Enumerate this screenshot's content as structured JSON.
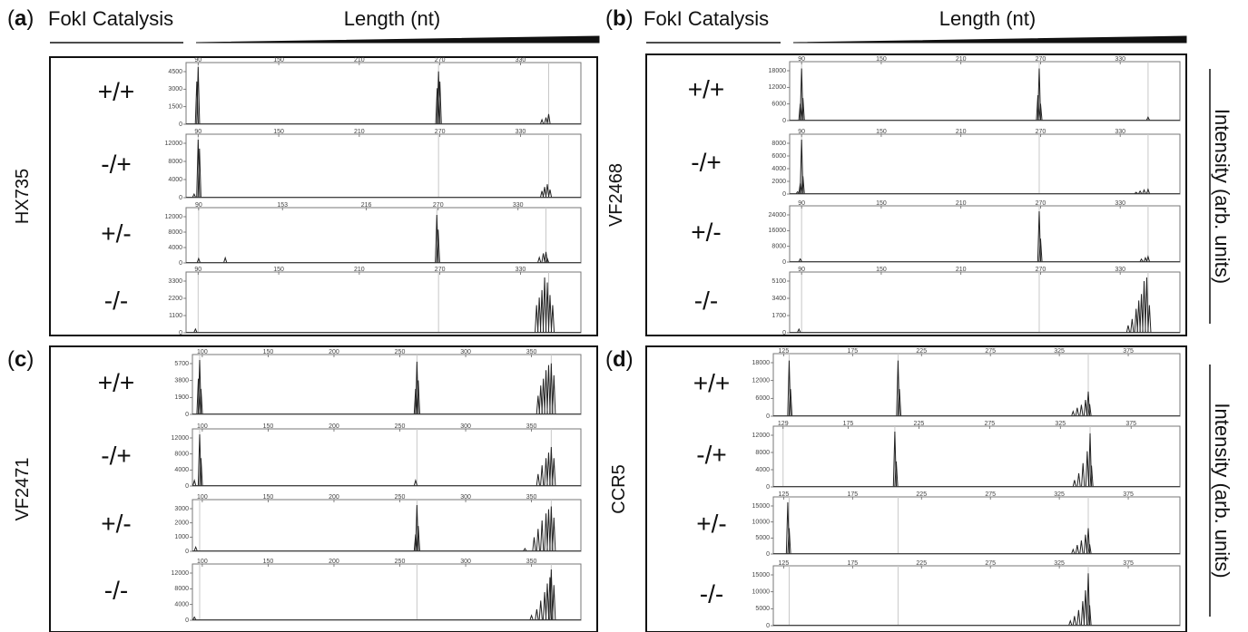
{
  "panels": [
    {
      "id": "a",
      "panel_label": "(a)",
      "catalysis_label": "FokI Catalysis",
      "length_label": "Length (nt)",
      "sample": "HX735",
      "show_intensity": false,
      "traces": [
        {
          "condition": "+/+",
          "xticks": [
            "90",
            "150",
            "210",
            "270",
            "330"
          ],
          "yticks": [
            "4500",
            "3000",
            "1500",
            "0"
          ],
          "ymax": 5000,
          "peaks": [
            [
              89,
              3800
            ],
            [
              90,
              5100
            ],
            [
              268,
              3200
            ],
            [
              269,
              4700
            ],
            [
              270,
              3800
            ],
            [
              346,
              400
            ],
            [
              349,
              600
            ],
            [
              351,
              900
            ]
          ],
          "guides": [
            90,
            269,
            351
          ]
        },
        {
          "condition": "-/+",
          "xticks": [
            "90",
            "150",
            "210",
            "270",
            "330"
          ],
          "yticks": [
            "12000",
            "8000",
            "4000",
            "0"
          ],
          "ymax": 13000,
          "peaks": [
            [
              87,
              800
            ],
            [
              90,
              13000
            ],
            [
              91,
              11000
            ],
            [
              346,
              1500
            ],
            [
              348,
              2400
            ],
            [
              350,
              3000
            ],
            [
              352,
              1800
            ]
          ],
          "guides": [
            90,
            269,
            351
          ]
        },
        {
          "condition": "+/-",
          "xticks": [
            "90",
            "153",
            "216",
            "270",
            "330"
          ],
          "yticks": [
            "12000",
            "8000",
            "4000",
            "0"
          ],
          "ymax": 13500,
          "peaks": [
            [
              90,
              1200
            ],
            [
              110,
              1400
            ],
            [
              269,
              13000
            ],
            [
              270,
              9000
            ],
            [
              346,
              1500
            ],
            [
              349,
              2600
            ],
            [
              351,
              3000
            ],
            [
              352,
              1200
            ]
          ],
          "guides": [
            90,
            269,
            351
          ]
        },
        {
          "condition": "-/-",
          "xticks": [
            "90",
            "150",
            "210",
            "270",
            "330"
          ],
          "yticks": [
            "3300",
            "2200",
            "1100",
            "0"
          ],
          "ymax": 4400,
          "peaks": [
            [
              88,
              300
            ],
            [
              342,
              2200
            ],
            [
              344,
              2800
            ],
            [
              346,
              3400
            ],
            [
              348,
              4400
            ],
            [
              350,
              4000
            ],
            [
              352,
              3000
            ],
            [
              354,
              2200
            ]
          ],
          "guides": [
            90,
            269,
            351
          ]
        }
      ]
    },
    {
      "id": "b",
      "panel_label": "(b)",
      "catalysis_label": "FokI Catalysis",
      "length_label": "Length (nt)",
      "sample": "VF2468",
      "show_intensity": true,
      "intensity_label": "Intensity (arb. units)",
      "traces": [
        {
          "condition": "+/+",
          "xticks": [
            "90",
            "150",
            "210",
            "270",
            "330"
          ],
          "yticks": [
            "18000",
            "12000",
            "6000",
            "0"
          ],
          "ymax": 19000,
          "peaks": [
            [
              89,
              6000
            ],
            [
              90,
              18500
            ],
            [
              91,
              8000
            ],
            [
              268,
              9000
            ],
            [
              269,
              18500
            ],
            [
              270,
              6000
            ],
            [
              351,
              1200
            ]
          ],
          "guides": [
            90,
            269,
            351
          ]
        },
        {
          "condition": "-/+",
          "xticks": [
            "90",
            "150",
            "210",
            "270",
            "330"
          ],
          "yticks": [
            "8000",
            "6000",
            "4000",
            "2000",
            "0"
          ],
          "ymax": 9200,
          "peaks": [
            [
              87,
              400
            ],
            [
              89,
              1800
            ],
            [
              90,
              9200
            ],
            [
              91,
              3000
            ],
            [
              342,
              300
            ],
            [
              345,
              500
            ],
            [
              348,
              700
            ],
            [
              351,
              800
            ]
          ],
          "guides": [
            90,
            269,
            351
          ]
        },
        {
          "condition": "+/-",
          "xticks": [
            "90",
            "150",
            "210",
            "270",
            "330"
          ],
          "yticks": [
            "24000",
            "16000",
            "8000",
            "0"
          ],
          "ymax": 26000,
          "peaks": [
            [
              89,
              1600
            ],
            [
              269,
              26000
            ],
            [
              270,
              12000
            ],
            [
              346,
              1500
            ],
            [
              349,
              2200
            ],
            [
              351,
              2800
            ]
          ],
          "guides": [
            90,
            269,
            351
          ]
        },
        {
          "condition": "-/-",
          "xticks": [
            "90",
            "150",
            "210",
            "270",
            "330"
          ],
          "yticks": [
            "5100",
            "3400",
            "1700",
            "0"
          ],
          "ymax": 6000,
          "peaks": [
            [
              88,
              400
            ],
            [
              336,
              800
            ],
            [
              339,
              1500
            ],
            [
              342,
              2600
            ],
            [
              344,
              3500
            ],
            [
              346,
              4200
            ],
            [
              348,
              5600
            ],
            [
              350,
              6000
            ],
            [
              352,
              3000
            ]
          ],
          "guides": [
            90,
            269,
            351
          ]
        }
      ]
    },
    {
      "id": "c",
      "panel_label": "(c)",
      "sample": "VF2471",
      "show_intensity": false,
      "traces": [
        {
          "condition": "+/+",
          "xticks": [
            "100",
            "150",
            "200",
            "250",
            "300",
            "350"
          ],
          "yticks": [
            "5700",
            "3800",
            "1900",
            "0"
          ],
          "ymax": 6400,
          "peaks": [
            [
              97,
              4200
            ],
            [
              98,
              6400
            ],
            [
              99,
              3000
            ],
            [
              262,
              3000
            ],
            [
              263,
              6200
            ],
            [
              264,
              4000
            ],
            [
              355,
              2200
            ],
            [
              357,
              3400
            ],
            [
              359,
              4200
            ],
            [
              361,
              5200
            ],
            [
              363,
              5800
            ],
            [
              365,
              6000
            ],
            [
              367,
              4600
            ]
          ],
          "guides": [
            98,
            263,
            365
          ]
        },
        {
          "condition": "-/+",
          "xticks": [
            "100",
            "150",
            "200",
            "250",
            "300",
            "350"
          ],
          "yticks": [
            "12000",
            "8000",
            "4000",
            "0"
          ],
          "ymax": 13000,
          "peaks": [
            [
              94,
              1400
            ],
            [
              98,
              13000
            ],
            [
              99,
              7000
            ],
            [
              262,
              1400
            ],
            [
              355,
              3000
            ],
            [
              358,
              5200
            ],
            [
              361,
              7000
            ],
            [
              363,
              8400
            ],
            [
              365,
              9800
            ],
            [
              367,
              7000
            ]
          ],
          "guides": [
            98,
            263,
            365
          ]
        },
        {
          "condition": "+/-",
          "xticks": [
            "100",
            "150",
            "200",
            "250",
            "300",
            "350"
          ],
          "yticks": [
            "3000",
            "2000",
            "1000",
            "0"
          ],
          "ymax": 3300,
          "peaks": [
            [
              95,
              300
            ],
            [
              262,
              1200
            ],
            [
              263,
              3300
            ],
            [
              264,
              1800
            ],
            [
              345,
              200
            ],
            [
              352,
              1000
            ],
            [
              355,
              1600
            ],
            [
              358,
              2200
            ],
            [
              361,
              2700
            ],
            [
              363,
              3000
            ],
            [
              365,
              3200
            ],
            [
              367,
              2400
            ]
          ],
          "guides": [
            98,
            263,
            365
          ]
        },
        {
          "condition": "-/-",
          "xticks": [
            "100",
            "150",
            "200",
            "250",
            "300",
            "350"
          ],
          "yticks": [
            "12000",
            "8000",
            "4000",
            "0"
          ],
          "ymax": 13000,
          "peaks": [
            [
              94,
              800
            ],
            [
              350,
              1200
            ],
            [
              354,
              2800
            ],
            [
              357,
              5000
            ],
            [
              360,
              7200
            ],
            [
              362,
              9400
            ],
            [
              364,
              11000
            ],
            [
              365,
              13000
            ],
            [
              367,
              9000
            ]
          ],
          "guides": [
            98,
            263,
            365
          ]
        }
      ]
    },
    {
      "id": "d",
      "panel_label": "(d)",
      "sample": "CCR5",
      "show_intensity": true,
      "intensity_label": "Intensity (arb. units)",
      "traces": [
        {
          "condition": "+/+",
          "xticks": [
            "125",
            "175",
            "225",
            "275",
            "325",
            "375"
          ],
          "yticks": [
            "18000",
            "12000",
            "6000",
            "0"
          ],
          "ymax": 19000,
          "peaks": [
            [
              129,
              18500
            ],
            [
              130,
              9000
            ],
            [
              208,
              18500
            ],
            [
              209,
              9000
            ],
            [
              335,
              1600
            ],
            [
              338,
              2800
            ],
            [
              341,
              3800
            ],
            [
              344,
              5400
            ],
            [
              346,
              8200
            ],
            [
              347,
              4000
            ]
          ],
          "guides": [
            129,
            208,
            346
          ]
        },
        {
          "condition": "-/+",
          "xticks": [
            "129",
            "175",
            "225",
            "275",
            "325",
            "375"
          ],
          "yticks": [
            "12000",
            "8000",
            "4000",
            "0"
          ],
          "ymax": 13000,
          "peaks": [
            [
              208,
              13000
            ],
            [
              209,
              6000
            ],
            [
              335,
              1600
            ],
            [
              338,
              3200
            ],
            [
              341,
              5600
            ],
            [
              344,
              8400
            ],
            [
              346,
              12600
            ],
            [
              347,
              5000
            ]
          ],
          "guides": [
            129,
            208,
            346
          ]
        },
        {
          "condition": "+/-",
          "xticks": [
            "125",
            "175",
            "225",
            "275",
            "325",
            "375"
          ],
          "yticks": [
            "15000",
            "10000",
            "5000",
            "0"
          ],
          "ymax": 16000,
          "peaks": [
            [
              128,
              16000
            ],
            [
              129,
              8000
            ],
            [
              335,
              1400
            ],
            [
              338,
              2800
            ],
            [
              341,
              4200
            ],
            [
              344,
              6000
            ],
            [
              346,
              8000
            ],
            [
              347,
              3000
            ]
          ],
          "guides": [
            129,
            208,
            346
          ]
        },
        {
          "condition": "-/-",
          "xticks": [
            "125",
            "175",
            "225",
            "275",
            "325",
            "375"
          ],
          "yticks": [
            "15000",
            "10000",
            "5000",
            "0"
          ],
          "ymax": 16000,
          "peaks": [
            [
              333,
              1400
            ],
            [
              336,
              2800
            ],
            [
              339,
              4600
            ],
            [
              342,
              7200
            ],
            [
              344,
              10400
            ],
            [
              346,
              15400
            ],
            [
              347,
              6000
            ]
          ],
          "guides": [
            129,
            208,
            346
          ]
        }
      ]
    }
  ]
}
